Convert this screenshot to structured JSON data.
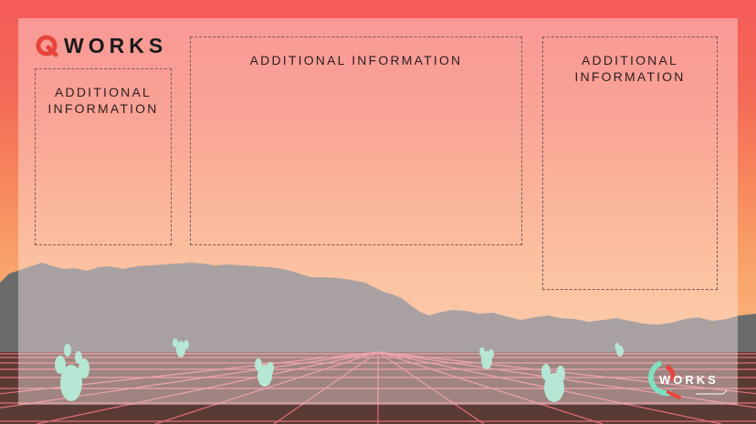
{
  "brand": {
    "logo_text": "WORKS",
    "logo_letter": "Q",
    "accent_color": "#e8443a"
  },
  "panels": [
    {
      "title": "ADDITIONAL INFORMATION"
    },
    {
      "title": "ADDITIONAL INFORMATION"
    },
    {
      "title": "ADDITIONAL INFORMATION"
    }
  ],
  "corner_logo": {
    "text": "WORKS",
    "icon": "q-logo-icon"
  },
  "background": {
    "sky_top": "#f45a59",
    "sky_bottom": "#f9b07a",
    "mountain_color": "#6a6a6a",
    "grid_color": "#e06a78",
    "cactus_color": "#7fe0c0"
  }
}
